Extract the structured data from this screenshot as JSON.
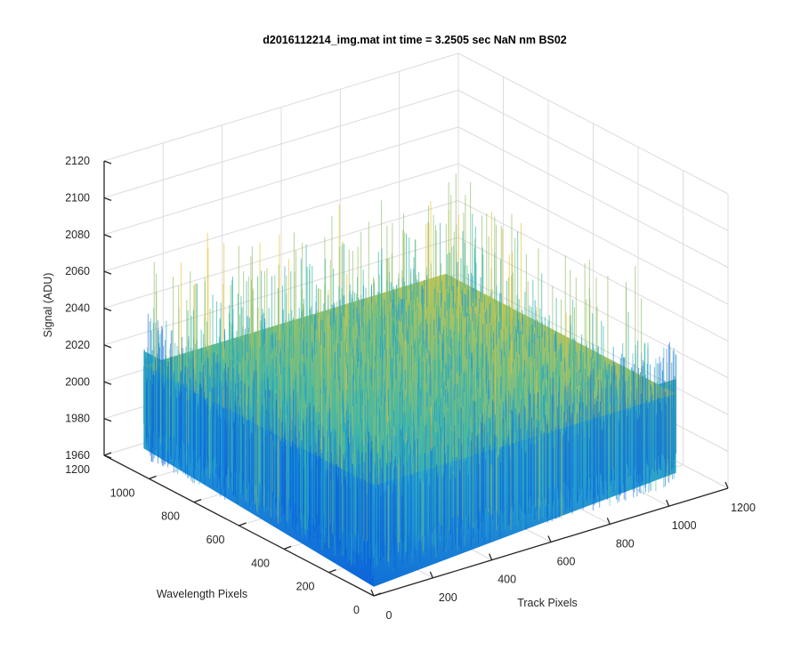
{
  "chart_data": {
    "type": "surface3d",
    "title": "d2016112214_img.mat int time = 3.2505 sec  NaN nm BS02",
    "xlabel": "Track Pixels",
    "ylabel": "Wavelength Pixels",
    "zlabel": "Signal (ADU)",
    "xlim": [
      0,
      1200
    ],
    "ylim": [
      0,
      1200
    ],
    "zlim": [
      1960,
      2120
    ],
    "x_ticks": [
      "0",
      "200",
      "400",
      "600",
      "800",
      "1000",
      "1200"
    ],
    "y_ticks": [
      "0",
      "200",
      "400",
      "600",
      "800",
      "1000",
      "1200"
    ],
    "z_ticks": [
      "1960",
      "1980",
      "2000",
      "2020",
      "2040",
      "2060",
      "2080",
      "2100",
      "2120"
    ],
    "grid": true,
    "colormap": "parula",
    "surface_extent": {
      "x": [
        0,
        1024
      ],
      "y": [
        0,
        1024
      ]
    },
    "signal_level": {
      "mean": 2020,
      "min": 1965,
      "max": 2100
    },
    "colors": {
      "low": "#0a62d8",
      "mid_low": "#1e9bd6",
      "mid": "#38b7a8",
      "mid_high": "#94c06a",
      "high": "#e8c53a",
      "axis": "#262626",
      "grid": "#dcdcdc"
    }
  }
}
